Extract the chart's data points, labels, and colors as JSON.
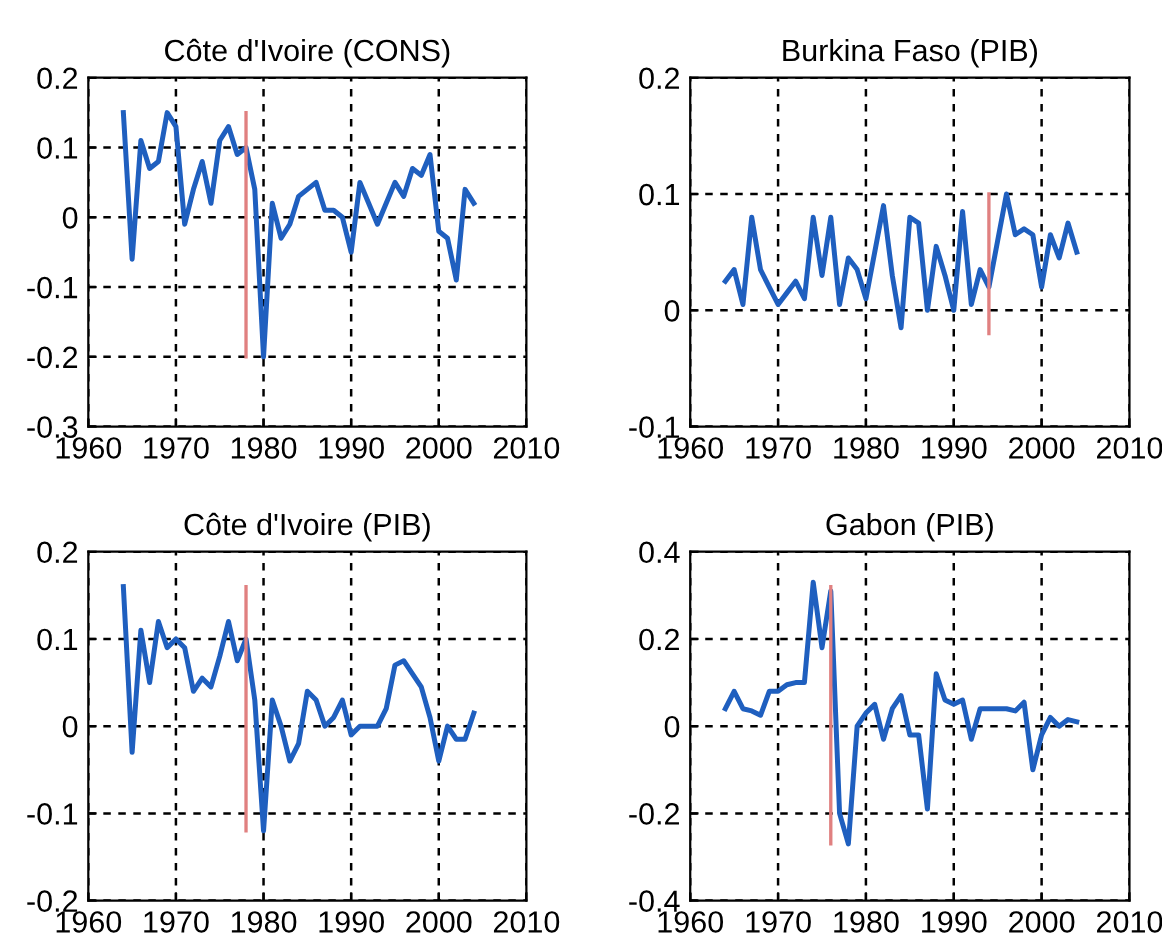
{
  "chart_data": [
    {
      "type": "line",
      "title": "Côte d'Ivoire (CONS)",
      "xlim": [
        1960,
        2010
      ],
      "xticks": [
        1960,
        1970,
        1980,
        1990,
        2000,
        2010
      ],
      "ylim": [
        -0.3,
        0.2
      ],
      "yticks": [
        -0.3,
        -0.2,
        -0.1,
        0,
        0.1,
        0.2
      ],
      "grid": true,
      "line_style": "solid",
      "series": [
        {
          "color": "#1f5fbf",
          "x": [
            1964,
            1965,
            1966,
            1967,
            1968,
            1969,
            1970,
            1971,
            1972,
            1973,
            1974,
            1975,
            1976,
            1977,
            1978,
            1979,
            1980,
            1981,
            1982,
            1983,
            1984,
            1985,
            1986,
            1987,
            1988,
            1989,
            1990,
            1991,
            1992,
            1993,
            1994,
            1995,
            1996,
            1997,
            1998,
            1999,
            2000,
            2001,
            2002,
            2003,
            2004
          ],
          "values": [
            0.15,
            -0.06,
            0.11,
            0.07,
            0.08,
            0.15,
            0.13,
            -0.01,
            0.04,
            0.08,
            0.02,
            0.11,
            0.13,
            0.09,
            0.1,
            0.04,
            -0.2,
            0.02,
            -0.03,
            -0.01,
            0.03,
            0.04,
            0.05,
            0.01,
            0.01,
            0.0,
            -0.05,
            0.05,
            0.02,
            -0.01,
            0.02,
            0.05,
            0.03,
            0.07,
            0.06,
            0.09,
            -0.02,
            -0.03,
            -0.09,
            0.04,
            0.02
          ]
        },
        {
          "color": "#e08080",
          "x": [
            1978,
            1978
          ],
          "values": [
            -0.2,
            0.15
          ]
        }
      ]
    },
    {
      "type": "line",
      "title": "Burkina Faso (PIB)",
      "xlim": [
        1960,
        2010
      ],
      "xticks": [
        1960,
        1970,
        1980,
        1990,
        2000,
        2010
      ],
      "ylim": [
        -0.1,
        0.2
      ],
      "yticks": [
        -0.1,
        0,
        0.1,
        0.2
      ],
      "grid": true,
      "line_style": "solid",
      "series": [
        {
          "color": "#1f5fbf",
          "x": [
            1964,
            1965,
            1966,
            1967,
            1968,
            1969,
            1970,
            1971,
            1972,
            1973,
            1974,
            1975,
            1976,
            1977,
            1978,
            1979,
            1980,
            1981,
            1982,
            1983,
            1984,
            1985,
            1986,
            1987,
            1988,
            1989,
            1990,
            1991,
            1992,
            1993,
            1994,
            1995,
            1996,
            1997,
            1998,
            1999,
            2000,
            2001,
            2002,
            2003,
            2004
          ],
          "values": [
            0.025,
            0.035,
            0.005,
            0.08,
            0.035,
            0.02,
            0.005,
            0.015,
            0.025,
            0.01,
            0.08,
            0.03,
            0.08,
            0.005,
            0.045,
            0.035,
            0.01,
            0.05,
            0.09,
            0.03,
            -0.015,
            0.08,
            0.075,
            0.0,
            0.055,
            0.03,
            0.0,
            0.085,
            0.005,
            0.035,
            0.02,
            0.06,
            0.1,
            0.065,
            0.07,
            0.065,
            0.02,
            0.065,
            0.045,
            0.075,
            0.05
          ]
        },
        {
          "color": "#e08080",
          "x": [
            1994,
            1994
          ],
          "values": [
            -0.02,
            0.1
          ]
        }
      ]
    },
    {
      "type": "line",
      "title": "Côte d'Ivoire (PIB)",
      "xlim": [
        1960,
        2010
      ],
      "xticks": [
        1960,
        1970,
        1980,
        1990,
        2000,
        2010
      ],
      "ylim": [
        -0.2,
        0.2
      ],
      "yticks": [
        -0.2,
        -0.1,
        0,
        0.1,
        0.2
      ],
      "grid": true,
      "line_style": "solid",
      "series": [
        {
          "color": "#1f5fbf",
          "x": [
            1964,
            1965,
            1966,
            1967,
            1968,
            1969,
            1970,
            1971,
            1972,
            1973,
            1974,
            1975,
            1976,
            1977,
            1978,
            1979,
            1980,
            1981,
            1982,
            1983,
            1984,
            1985,
            1986,
            1987,
            1988,
            1989,
            1990,
            1991,
            1992,
            1993,
            1994,
            1995,
            1996,
            1997,
            1998,
            1999,
            2000,
            2001,
            2002,
            2003,
            2004
          ],
          "values": [
            0.16,
            -0.03,
            0.11,
            0.05,
            0.12,
            0.09,
            0.1,
            0.09,
            0.04,
            0.055,
            0.045,
            0.08,
            0.12,
            0.075,
            0.1,
            0.03,
            -0.12,
            0.03,
            0.0,
            -0.04,
            -0.02,
            0.04,
            0.03,
            0.0,
            0.01,
            0.03,
            -0.01,
            0.0,
            0.0,
            0.0,
            0.02,
            0.07,
            0.075,
            0.06,
            0.045,
            0.01,
            -0.04,
            0.0,
            -0.015,
            -0.015,
            0.015
          ]
        },
        {
          "color": "#e08080",
          "x": [
            1978,
            1978
          ],
          "values": [
            -0.12,
            0.16
          ]
        }
      ]
    },
    {
      "type": "line",
      "title": "Gabon (PIB)",
      "xlim": [
        1960,
        2010
      ],
      "xticks": [
        1960,
        1970,
        1980,
        1990,
        2000,
        2010
      ],
      "ylim": [
        -0.4,
        0.4
      ],
      "yticks": [
        -0.4,
        -0.2,
        0,
        0.2,
        0.4
      ],
      "grid": true,
      "line_style": "solid",
      "series": [
        {
          "color": "#1f5fbf",
          "x": [
            1964,
            1965,
            1966,
            1967,
            1968,
            1969,
            1970,
            1971,
            1972,
            1973,
            1974,
            1975,
            1976,
            1977,
            1978,
            1979,
            1980,
            1981,
            1982,
            1983,
            1984,
            1985,
            1986,
            1987,
            1988,
            1989,
            1990,
            1991,
            1992,
            1993,
            1994,
            1995,
            1996,
            1997,
            1998,
            1999,
            2000,
            2001,
            2002,
            2003,
            2004
          ],
          "values": [
            0.04,
            0.08,
            0.04,
            0.035,
            0.025,
            0.08,
            0.08,
            0.095,
            0.1,
            0.1,
            0.33,
            0.18,
            0.31,
            -0.2,
            -0.27,
            0.0,
            0.03,
            0.05,
            -0.03,
            0.04,
            0.07,
            -0.02,
            -0.02,
            -0.19,
            0.12,
            0.06,
            0.05,
            0.06,
            -0.03,
            0.04,
            0.04,
            0.04,
            0.04,
            0.035,
            0.055,
            -0.1,
            -0.02,
            0.02,
            0.0,
            0.015,
            0.01
          ]
        },
        {
          "color": "#e08080",
          "x": [
            1976,
            1976
          ],
          "values": [
            -0.27,
            0.32
          ]
        }
      ]
    }
  ]
}
